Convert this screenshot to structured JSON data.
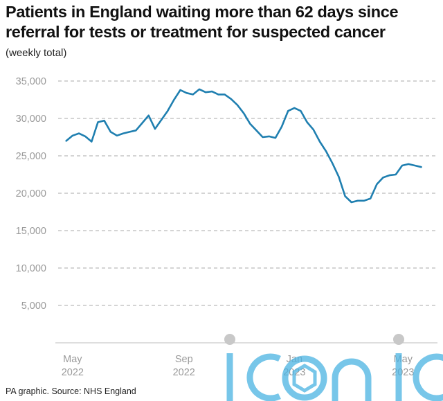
{
  "title": "Patients in England waiting more than 62 days since referral for tests or treatment for suspected cancer",
  "unit_label": "(weekly total)",
  "source": "PA graphic. Source: NHS England",
  "watermark": "iconic",
  "colors": {
    "line": "#1f7fb0",
    "grid": "#a8a8a8",
    "axis": "#bdbdbd",
    "tick_text": "#9a9a9a",
    "watermark": "#4ab3e2",
    "watermark_dots": "#c8c8c8"
  },
  "chart_data": {
    "type": "line",
    "title": "Patients in England waiting more than 62 days since referral for tests or treatment for suspected cancer",
    "ylabel": "(weekly total)",
    "xlabel": "",
    "ylim": [
      0,
      35000
    ],
    "yticks": [
      5000,
      10000,
      15000,
      20000,
      25000,
      30000,
      35000
    ],
    "ytick_labels": [
      "5,000",
      "10,000",
      "15,000",
      "20,000",
      "25,000",
      "30,000",
      "35,000"
    ],
    "xticks": [
      {
        "date": "2022-05-01",
        "label": [
          "May",
          "2022"
        ]
      },
      {
        "date": "2022-09-01",
        "label": [
          "Sep",
          "2022"
        ]
      },
      {
        "date": "2023-01-01",
        "label": [
          "Jan",
          "2023"
        ]
      },
      {
        "date": "2023-05-01",
        "label": [
          "May",
          "2023"
        ]
      }
    ],
    "grid": true,
    "legend": "none",
    "series": [
      {
        "points": [
          [
            "2022-04-24",
            27000
          ],
          [
            "2022-05-01",
            27700
          ],
          [
            "2022-05-08",
            28000
          ],
          [
            "2022-05-15",
            27600
          ],
          [
            "2022-05-22",
            26900
          ],
          [
            "2022-05-29",
            29500
          ],
          [
            "2022-06-05",
            29700
          ],
          [
            "2022-06-12",
            28200
          ],
          [
            "2022-06-19",
            27700
          ],
          [
            "2022-06-26",
            28000
          ],
          [
            "2022-07-03",
            28200
          ],
          [
            "2022-07-10",
            28400
          ],
          [
            "2022-07-17",
            29400
          ],
          [
            "2022-07-24",
            30400
          ],
          [
            "2022-07-31",
            28600
          ],
          [
            "2022-08-07",
            29800
          ],
          [
            "2022-08-14",
            31000
          ],
          [
            "2022-08-21",
            32500
          ],
          [
            "2022-08-28",
            33800
          ],
          [
            "2022-09-04",
            33400
          ],
          [
            "2022-09-11",
            33200
          ],
          [
            "2022-09-18",
            33900
          ],
          [
            "2022-09-25",
            33500
          ],
          [
            "2022-10-02",
            33600
          ],
          [
            "2022-10-09",
            33200
          ],
          [
            "2022-10-16",
            33200
          ],
          [
            "2022-10-23",
            32600
          ],
          [
            "2022-10-30",
            31800
          ],
          [
            "2022-11-06",
            30700
          ],
          [
            "2022-11-13",
            29300
          ],
          [
            "2022-11-20",
            28400
          ],
          [
            "2022-11-27",
            27500
          ],
          [
            "2022-12-04",
            27600
          ],
          [
            "2022-12-11",
            27400
          ],
          [
            "2022-12-18",
            28900
          ],
          [
            "2022-12-25",
            31000
          ],
          [
            "2023-01-01",
            31400
          ],
          [
            "2023-01-08",
            31000
          ],
          [
            "2023-01-15",
            29500
          ],
          [
            "2023-01-22",
            28500
          ],
          [
            "2023-01-29",
            26900
          ],
          [
            "2023-02-05",
            25600
          ],
          [
            "2023-02-12",
            24000
          ],
          [
            "2023-02-19",
            22200
          ],
          [
            "2023-02-26",
            19600
          ],
          [
            "2023-03-05",
            18800
          ],
          [
            "2023-03-12",
            19000
          ],
          [
            "2023-03-19",
            19000
          ],
          [
            "2023-03-26",
            19300
          ],
          [
            "2023-04-02",
            21200
          ],
          [
            "2023-04-09",
            22100
          ],
          [
            "2023-04-16",
            22400
          ],
          [
            "2023-04-23",
            22500
          ],
          [
            "2023-04-30",
            23700
          ],
          [
            "2023-05-07",
            23900
          ],
          [
            "2023-05-14",
            23700
          ],
          [
            "2023-05-21",
            23500
          ]
        ]
      }
    ]
  }
}
